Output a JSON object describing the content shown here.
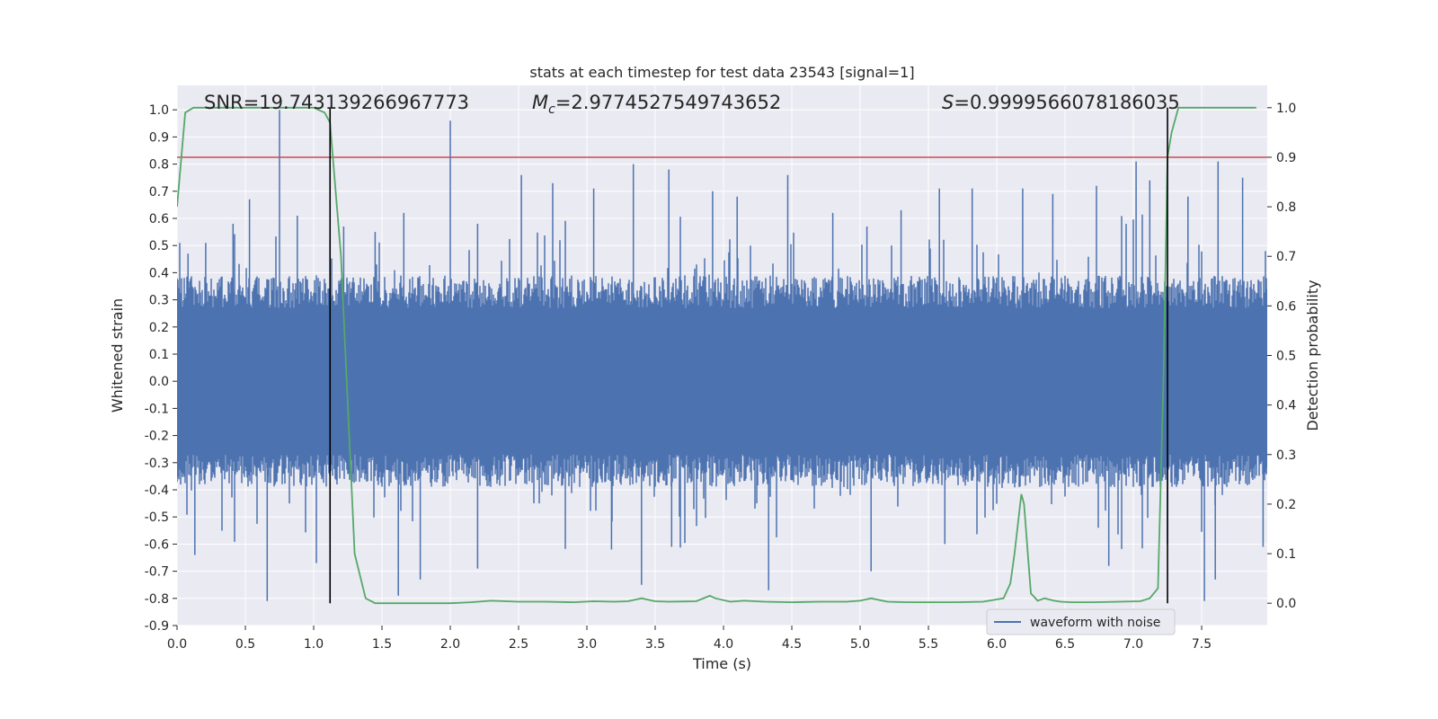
{
  "chart_data": {
    "type": "line",
    "title": "stats at each timestep for test data 23543 [signal=1]",
    "xlabel": "Time (s)",
    "ylabel": "Whitened strain",
    "ylabel_right": "Detection probability",
    "xlim": [
      0.0,
      7.98
    ],
    "ylim": [
      -0.9,
      1.09
    ],
    "ylim_right": [
      -0.045,
      1.045
    ],
    "xticks": [
      "0.0",
      "0.5",
      "1.0",
      "1.5",
      "2.0",
      "2.5",
      "3.0",
      "3.5",
      "4.0",
      "4.5",
      "5.0",
      "5.5",
      "6.0",
      "6.5",
      "7.0",
      "7.5"
    ],
    "yticks": [
      "1.0",
      "0.9",
      "0.8",
      "0.7",
      "0.6",
      "0.5",
      "0.4",
      "0.3",
      "0.2",
      "0.1",
      "0.0",
      "-0.1",
      "-0.2",
      "-0.3",
      "-0.4",
      "-0.5",
      "-0.6",
      "-0.7",
      "-0.8",
      "-0.9"
    ],
    "yticks_right": [
      "1.0",
      "0.9",
      "0.8",
      "0.7",
      "0.6",
      "0.5",
      "0.4",
      "0.3",
      "0.2",
      "0.1",
      "0.0"
    ],
    "grid": true,
    "legend_position": "bottom-right",
    "annotations": {
      "snr": "SNR=19.743139266967773",
      "mc_symbol": "M",
      "mc_sub": "c",
      "mc_value": "=2.9774527549743652",
      "s_symbol": "S",
      "s_value": "=0.9999566078186035"
    },
    "series": [
      {
        "name": "waveform with noise",
        "axis": "left",
        "color": "#4c72b0",
        "description_level": "noise band roughly ±0.3 with spikes up to ±0.8",
        "x_end": 7.98,
        "spikes": [
          {
            "x": 0.02,
            "y": 0.51
          },
          {
            "x": 0.08,
            "y": 0.47
          },
          {
            "x": 0.21,
            "y": 0.51
          },
          {
            "x": 0.41,
            "y": 0.58
          },
          {
            "x": 0.53,
            "y": 0.67
          },
          {
            "x": 0.75,
            "y": 1.0
          },
          {
            "x": 0.88,
            "y": 0.61
          },
          {
            "x": 1.12,
            "y": 0.53
          },
          {
            "x": 1.22,
            "y": 0.57
          },
          {
            "x": 1.45,
            "y": 0.55
          },
          {
            "x": 1.66,
            "y": 0.62
          },
          {
            "x": 2.0,
            "y": 0.96
          },
          {
            "x": 2.2,
            "y": 0.58
          },
          {
            "x": 2.52,
            "y": 0.76
          },
          {
            "x": 2.75,
            "y": 0.73
          },
          {
            "x": 3.05,
            "y": 0.71
          },
          {
            "x": 3.34,
            "y": 0.8
          },
          {
            "x": 3.6,
            "y": 0.78
          },
          {
            "x": 3.92,
            "y": 0.7
          },
          {
            "x": 4.1,
            "y": 0.68
          },
          {
            "x": 4.47,
            "y": 0.76
          },
          {
            "x": 4.8,
            "y": 0.62
          },
          {
            "x": 5.05,
            "y": 0.57
          },
          {
            "x": 5.3,
            "y": 0.63
          },
          {
            "x": 5.58,
            "y": 0.71
          },
          {
            "x": 5.82,
            "y": 0.71
          },
          {
            "x": 6.19,
            "y": 0.71
          },
          {
            "x": 6.41,
            "y": 0.69
          },
          {
            "x": 6.73,
            "y": 0.72
          },
          {
            "x": 7.02,
            "y": 0.81
          },
          {
            "x": 7.12,
            "y": 0.74
          },
          {
            "x": 7.4,
            "y": 0.68
          },
          {
            "x": 7.62,
            "y": 0.81
          },
          {
            "x": 7.8,
            "y": 0.75
          },
          {
            "x": 0.66,
            "y": -0.81
          },
          {
            "x": 0.13,
            "y": -0.64
          },
          {
            "x": 1.02,
            "y": -0.67
          },
          {
            "x": 1.62,
            "y": -0.79
          },
          {
            "x": 1.78,
            "y": -0.73
          },
          {
            "x": 2.2,
            "y": -0.69
          },
          {
            "x": 3.18,
            "y": -0.62
          },
          {
            "x": 3.4,
            "y": -0.75
          },
          {
            "x": 3.62,
            "y": -0.61
          },
          {
            "x": 4.33,
            "y": -0.77
          },
          {
            "x": 5.08,
            "y": -0.7
          },
          {
            "x": 5.62,
            "y": -0.6
          },
          {
            "x": 6.82,
            "y": -0.68
          },
          {
            "x": 7.25,
            "y": -0.6
          },
          {
            "x": 7.52,
            "y": -0.81
          },
          {
            "x": 7.6,
            "y": -0.73
          },
          {
            "x": 7.95,
            "y": -0.61
          }
        ]
      },
      {
        "name": "detection probability",
        "axis": "right",
        "color": "#55a868",
        "x": [
          0.0,
          0.06,
          0.12,
          0.2,
          0.4,
          0.6,
          0.8,
          1.0,
          1.08,
          1.12,
          1.2,
          1.3,
          1.38,
          1.45,
          1.6,
          1.8,
          2.0,
          2.15,
          2.3,
          2.5,
          2.7,
          2.9,
          3.05,
          3.2,
          3.3,
          3.4,
          3.5,
          3.6,
          3.8,
          3.9,
          3.94,
          4.05,
          4.15,
          4.3,
          4.5,
          4.7,
          4.9,
          5.0,
          5.08,
          5.2,
          5.35,
          5.5,
          5.7,
          5.9,
          6.05,
          6.1,
          6.13,
          6.18,
          6.2,
          6.25,
          6.3,
          6.35,
          6.42,
          6.47,
          6.55,
          6.7,
          6.9,
          7.05,
          7.12,
          7.18,
          7.22,
          7.25,
          7.28,
          7.33,
          7.4,
          7.55,
          7.7,
          7.9
        ],
        "values": [
          0.8,
          0.99,
          1.0,
          1.0,
          1.0,
          1.0,
          1.0,
          1.0,
          0.99,
          0.97,
          0.7,
          0.1,
          0.01,
          0.0,
          0.0,
          0.0,
          0.0,
          0.002,
          0.005,
          0.003,
          0.003,
          0.002,
          0.004,
          0.003,
          0.004,
          0.01,
          0.004,
          0.003,
          0.004,
          0.015,
          0.01,
          0.003,
          0.005,
          0.003,
          0.002,
          0.003,
          0.003,
          0.005,
          0.01,
          0.003,
          0.002,
          0.002,
          0.002,
          0.003,
          0.01,
          0.04,
          0.1,
          0.22,
          0.2,
          0.02,
          0.005,
          0.01,
          0.005,
          0.003,
          0.002,
          0.002,
          0.003,
          0.004,
          0.01,
          0.03,
          0.45,
          0.9,
          0.95,
          1.0,
          1.0,
          1.0,
          1.0,
          1.0
        ]
      }
    ],
    "threshold": {
      "axis": "right",
      "value": 0.9,
      "color": "#c44e52"
    },
    "vlines": [
      {
        "x": 1.12
      },
      {
        "x": 7.25
      }
    ],
    "vline_color": "#000000",
    "background": "#eaeaf2",
    "grid_color": "#ffffff"
  }
}
